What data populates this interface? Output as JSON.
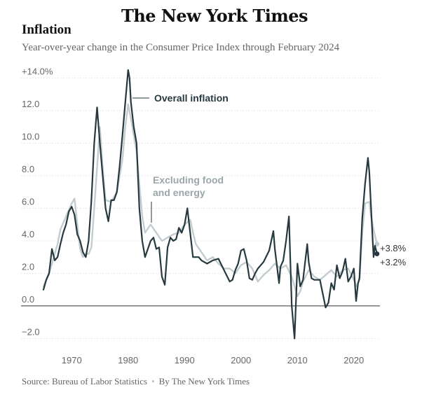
{
  "header": {
    "logo": "The New York Times",
    "title": "Inflation",
    "subtitle": "Year-over-year change in the Consumer Price Index through February 2024"
  },
  "footer": {
    "source": "Source: Bureau of Labor Statistics",
    "separator": "•",
    "credit": "By The New York Times"
  },
  "colors": {
    "overall": "#26393f",
    "core": "#c3cdcf",
    "grid": "#e2e2e2",
    "zero": "#333333"
  },
  "chart_data": {
    "type": "line",
    "xlim": [
      1965,
      2025
    ],
    "ylim": [
      -2.5,
      14.5
    ],
    "x_ticks": [
      {
        "value": 1970,
        "label": "1970"
      },
      {
        "value": 1980,
        "label": "1980"
      },
      {
        "value": 1990,
        "label": "1990"
      },
      {
        "value": 2000,
        "label": "2000"
      },
      {
        "value": 2010,
        "label": "2010"
      },
      {
        "value": 2020,
        "label": "2020"
      }
    ],
    "y_ticks": [
      {
        "value": 14,
        "label": "+14.0%"
      },
      {
        "value": 12,
        "label": "12.0"
      },
      {
        "value": 10,
        "label": "10.0"
      },
      {
        "value": 8,
        "label": "8.0"
      },
      {
        "value": 6,
        "label": "6.0"
      },
      {
        "value": 4,
        "label": "4.0"
      },
      {
        "value": 2,
        "label": "2.0"
      },
      {
        "value": 0,
        "label": "0.0"
      },
      {
        "value": -2,
        "label": "−2.0"
      }
    ],
    "grid": true,
    "annotations": {
      "overall": "Overall inflation",
      "core_line1": "Excluding food",
      "core_line2": "and energy"
    },
    "end_labels": {
      "core": "+3.8%",
      "overall": "+3.2%"
    },
    "series": [
      {
        "name": "Overall inflation",
        "key": "overall",
        "x": [
          1965.0,
          1965.5,
          1966.0,
          1966.5,
          1967.0,
          1967.5,
          1968.0,
          1968.5,
          1969.0,
          1969.5,
          1970.0,
          1970.5,
          1971.0,
          1971.5,
          1972.0,
          1972.5,
          1973.0,
          1973.5,
          1974.0,
          1974.5,
          1975.0,
          1975.5,
          1976.0,
          1976.5,
          1977.0,
          1977.5,
          1978.0,
          1978.5,
          1979.0,
          1979.5,
          1980.0,
          1980.25,
          1980.5,
          1981.0,
          1981.5,
          1982.0,
          1982.5,
          1983.0,
          1983.5,
          1984.0,
          1984.5,
          1985.0,
          1985.5,
          1986.0,
          1986.5,
          1987.0,
          1987.5,
          1988.0,
          1988.5,
          1989.0,
          1989.5,
          1990.0,
          1990.5,
          1991.0,
          1991.5,
          1992.0,
          1992.5,
          1993.0,
          1994.0,
          1995.0,
          1996.0,
          1997.0,
          1998.0,
          1998.5,
          1999.0,
          1999.5,
          2000.0,
          2000.5,
          2001.0,
          2001.5,
          2002.0,
          2002.5,
          2003.0,
          2004.0,
          2005.0,
          2005.75,
          2006.0,
          2006.75,
          2007.0,
          2007.5,
          2008.0,
          2008.5,
          2009.0,
          2009.5,
          2010.0,
          2010.5,
          2011.0,
          2011.75,
          2012.0,
          2012.5,
          2013.0,
          2014.0,
          2015.0,
          2015.5,
          2016.0,
          2016.5,
          2017.0,
          2017.5,
          2018.0,
          2018.5,
          2019.0,
          2019.5,
          2020.0,
          2020.4,
          2020.75,
          2021.0,
          2021.5,
          2022.0,
          2022.5,
          2022.75,
          2023.0,
          2023.5,
          2023.75,
          2024.1
        ],
        "values": [
          1.0,
          1.6,
          2.0,
          3.5,
          2.8,
          3.0,
          3.8,
          4.5,
          5.0,
          5.8,
          6.1,
          5.6,
          4.4,
          4.0,
          3.3,
          3.0,
          4.0,
          6.5,
          10.0,
          12.2,
          10.0,
          8.0,
          6.0,
          5.2,
          6.5,
          6.5,
          7.0,
          8.6,
          10.5,
          12.5,
          14.5,
          14.0,
          12.5,
          11.0,
          10.0,
          6.0,
          4.0,
          3.0,
          3.5,
          4.0,
          4.2,
          3.5,
          3.6,
          1.8,
          1.3,
          3.6,
          4.2,
          4.0,
          4.1,
          4.8,
          4.5,
          5.0,
          6.0,
          4.5,
          3.0,
          3.0,
          3.0,
          2.8,
          2.6,
          2.8,
          2.9,
          2.2,
          1.5,
          1.6,
          2.2,
          2.6,
          3.4,
          3.5,
          2.8,
          1.7,
          1.6,
          2.0,
          2.3,
          2.7,
          3.4,
          4.6,
          3.5,
          1.4,
          2.4,
          2.8,
          4.0,
          5.5,
          0.0,
          -2.0,
          2.6,
          1.2,
          1.6,
          3.8,
          2.7,
          1.7,
          1.6,
          1.6,
          -0.1,
          0.2,
          1.4,
          1.0,
          2.5,
          1.7,
          2.1,
          2.9,
          1.5,
          1.8,
          2.3,
          0.3,
          1.4,
          1.7,
          5.4,
          7.5,
          9.1,
          8.2,
          6.4,
          3.0,
          3.7,
          3.2
        ]
      },
      {
        "name": "Excluding food and energy",
        "key": "core",
        "x": [
          1965.0,
          1966.0,
          1966.5,
          1967.0,
          1967.5,
          1968.0,
          1969.0,
          1970.0,
          1970.5,
          1971.0,
          1971.5,
          1972.0,
          1972.5,
          1973.0,
          1973.5,
          1974.0,
          1975.0,
          1975.5,
          1976.0,
          1977.0,
          1978.0,
          1979.0,
          1979.5,
          1980.0,
          1980.5,
          1981.0,
          1981.5,
          1982.0,
          1982.5,
          1983.0,
          1984.0,
          1985.0,
          1986.0,
          1987.0,
          1988.0,
          1989.0,
          1990.0,
          1991.0,
          1991.5,
          1992.0,
          1993.0,
          1994.0,
          1995.0,
          1996.0,
          1997.0,
          1998.0,
          1999.0,
          2000.0,
          2001.0,
          2002.0,
          2003.0,
          2004.0,
          2005.0,
          2006.0,
          2007.0,
          2008.0,
          2009.0,
          2010.0,
          2010.5,
          2011.0,
          2012.0,
          2013.0,
          2014.0,
          2015.0,
          2016.0,
          2017.0,
          2018.0,
          2019.0,
          2020.0,
          2020.5,
          2021.0,
          2021.5,
          2022.0,
          2022.75,
          2023.0,
          2023.5,
          2024.1
        ],
        "values": [
          1.2,
          2.0,
          2.6,
          3.2,
          3.8,
          4.7,
          5.5,
          6.3,
          6.6,
          5.0,
          3.5,
          3.0,
          3.2,
          3.2,
          3.6,
          6.0,
          11.0,
          8.5,
          6.5,
          6.4,
          7.0,
          9.0,
          11.0,
          12.4,
          11.5,
          10.5,
          9.5,
          7.5,
          5.5,
          4.5,
          5.0,
          4.5,
          4.0,
          4.2,
          4.4,
          4.5,
          5.0,
          5.3,
          4.5,
          3.8,
          3.3,
          2.8,
          3.0,
          2.6,
          2.3,
          2.3,
          2.0,
          2.5,
          2.7,
          2.3,
          1.5,
          1.9,
          2.2,
          2.6,
          2.3,
          2.5,
          1.8,
          0.6,
          0.9,
          1.5,
          2.2,
          1.8,
          1.6,
          1.9,
          2.2,
          1.8,
          2.2,
          2.3,
          1.6,
          1.2,
          1.6,
          4.5,
          6.3,
          6.4,
          5.6,
          4.7,
          3.8
        ]
      }
    ]
  }
}
